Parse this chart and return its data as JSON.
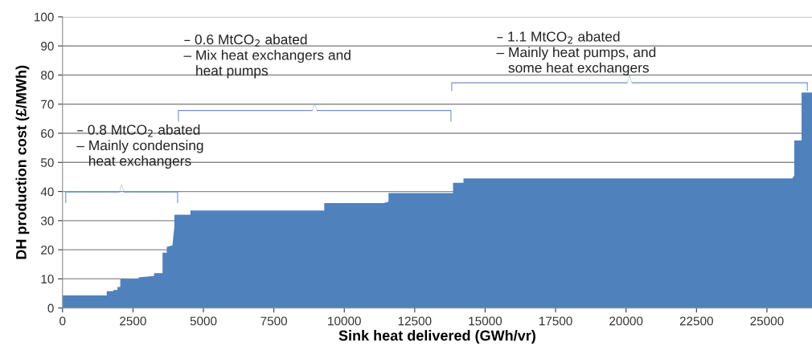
{
  "chart_data": {
    "type": "area",
    "xlabel": "Sink heat delivered (GWh/vr)",
    "ylabel": "DH production cost (£/MWh)",
    "x": [
      0,
      1570,
      1570,
      1800,
      1800,
      1950,
      1950,
      2050,
      2050,
      2700,
      2700,
      3250,
      3250,
      3550,
      3550,
      3700,
      3700,
      3900,
      3970,
      3970,
      4540,
      4540,
      9290,
      9290,
      11400,
      11570,
      11570,
      13860,
      13860,
      14230,
      14230,
      25900,
      25970,
      25970,
      26230,
      26230,
      26600
    ],
    "series": [
      {
        "color": "#4f81bd",
        "values": [
          4.3,
          4.3,
          5.8,
          5.8,
          6.2,
          6.2,
          7.2,
          7.2,
          10,
          10,
          10.5,
          11,
          12,
          12,
          19,
          19,
          21,
          21.5,
          28,
          32,
          32,
          33.5,
          33.5,
          36,
          36,
          36.5,
          39.5,
          39.5,
          43,
          43,
          44.5,
          44.5,
          45.5,
          57.5,
          57.5,
          74,
          74
        ]
      }
    ],
    "xlim": [
      0,
      26600
    ],
    "xticks": [
      0,
      2500,
      5000,
      7500,
      10000,
      12500,
      15000,
      17500,
      20000,
      22500,
      25000
    ],
    "ylim": [
      0,
      100
    ],
    "yticks": [
      0,
      10,
      20,
      30,
      40,
      50,
      60,
      70,
      80,
      90,
      100
    ],
    "grid": "y",
    "annotations": [
      "– 0.8 MtCO$_{2}$ abated\n– Mainly condensing\n   heat exchangers",
      "– 0.6 MtCO$_{2}$ abated\n– Mix heat exchangers and\n   heat pumps",
      "– 1.1 MtCO$_{2}$ abated\n– Mainly heat pumps, and\n   some heat exchangers"
    ]
  }
}
